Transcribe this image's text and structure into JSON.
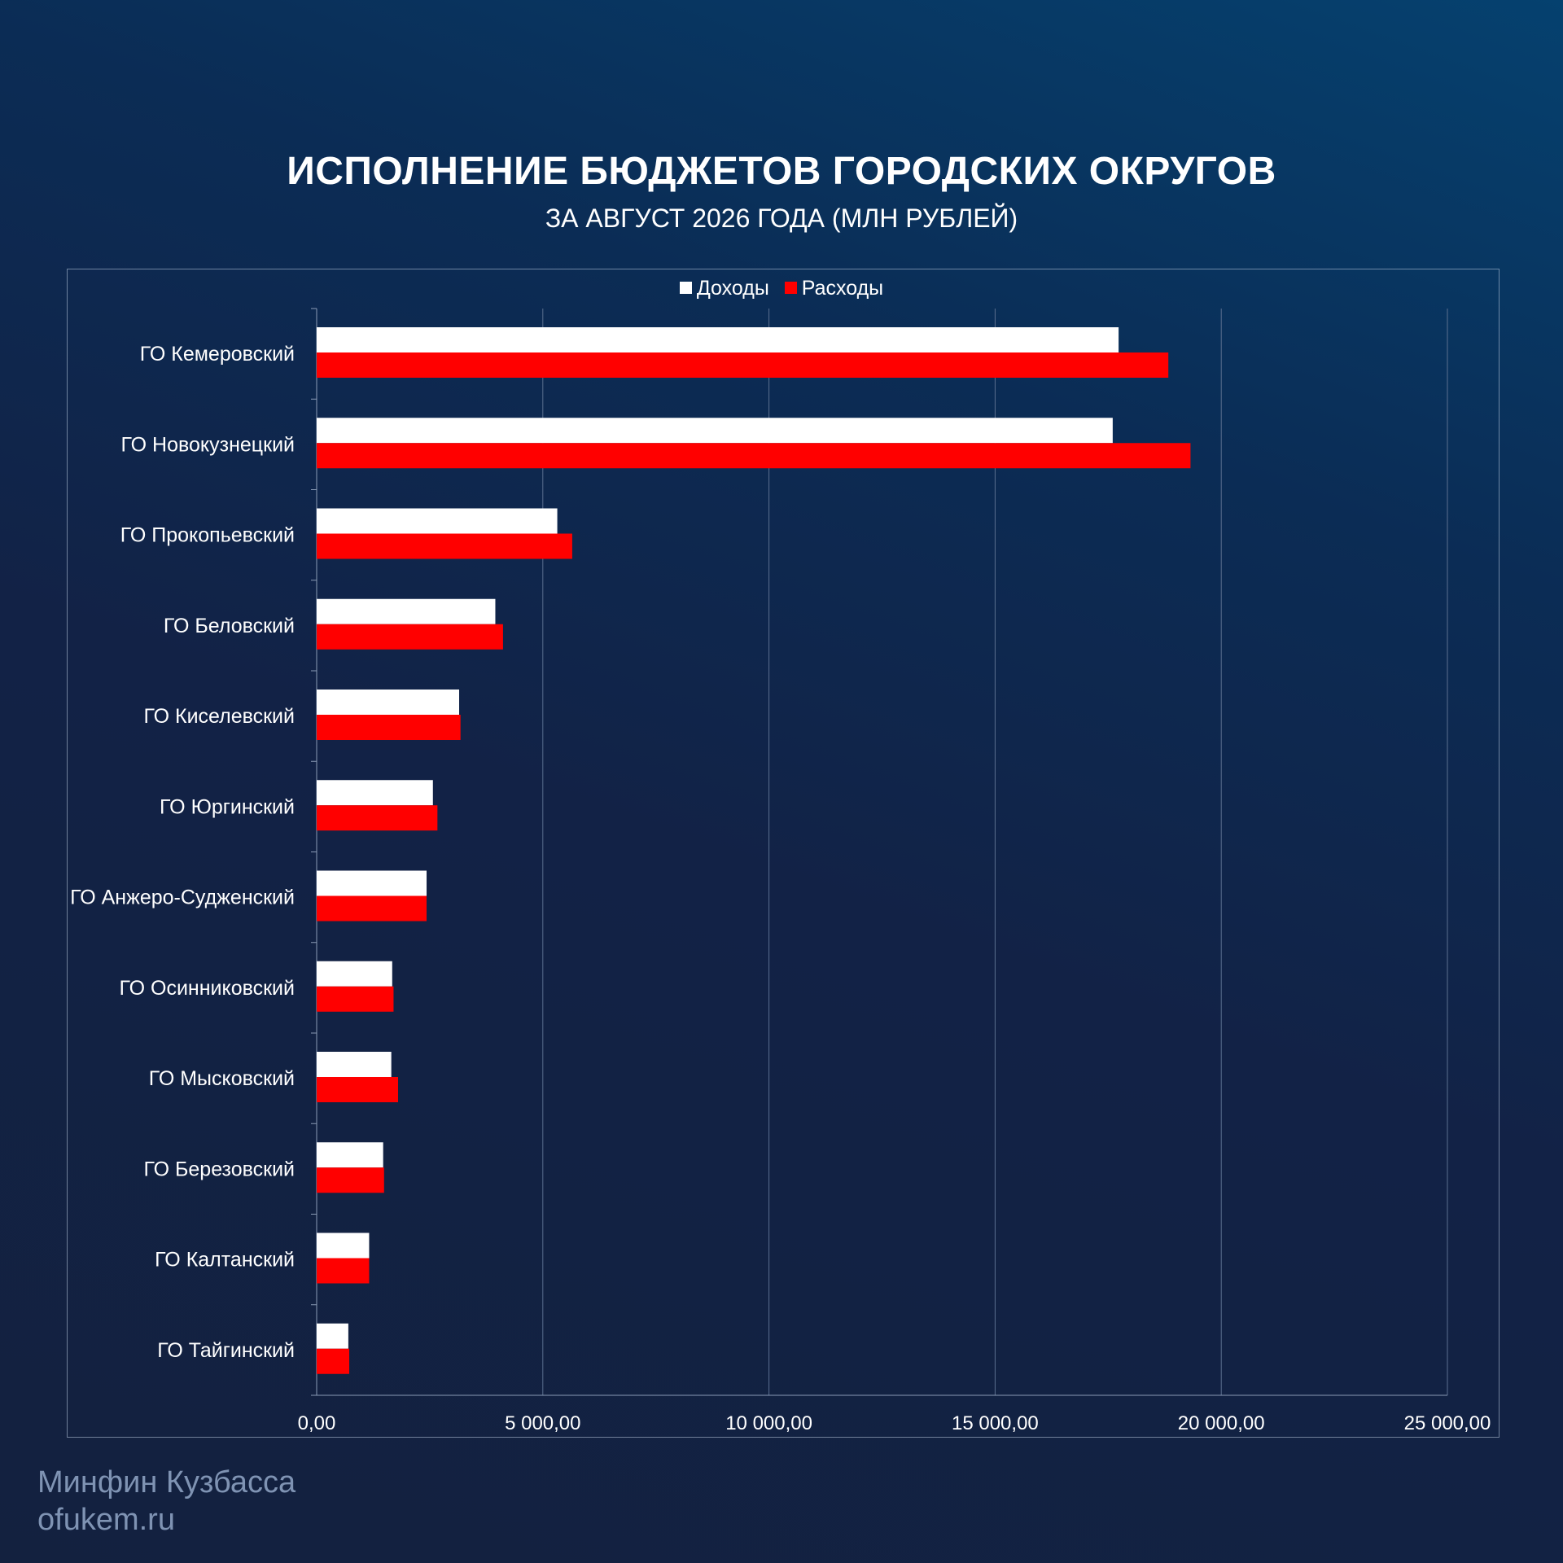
{
  "header": {
    "title": "ИСПОЛНЕНИЕ БЮДЖЕТОВ ГОРОДСКИХ ОКРУГОВ",
    "subtitle": "ЗА АВГУСТ 2026 ГОДА (МЛН РУБЛЕЙ)"
  },
  "footer": {
    "org": "Минфин Кузбасса",
    "site": "ofukem.ru"
  },
  "colors": {
    "income": "#ffffff",
    "expense": "#ff0000",
    "grid": "#5b6f8f"
  },
  "chart_data": {
    "type": "bar",
    "orientation": "horizontal",
    "title": "ИСПОЛНЕНИЕ БЮДЖЕТОВ ГОРОДСКИХ ОКРУГОВ",
    "subtitle": "ЗА АВГУСТ 2026 ГОДА (МЛН РУБЛЕЙ)",
    "categories": [
      "ГО Кемеровский",
      "ГО Новокузнецкий",
      "ГО Прокопьевский",
      "ГО Беловский",
      "ГО Киселевский",
      "ГО Юргинский",
      "ГО Анжеро-Судженский",
      "ГО Осинниковский",
      "ГО Мысковский",
      "ГО Березовский",
      "ГО Калтанский",
      "ГО Тайгинский"
    ],
    "series": [
      {
        "name": "Доходы",
        "color": "#ffffff",
        "values": [
          17730,
          17600,
          5320,
          3950,
          3150,
          2570,
          2430,
          1670,
          1650,
          1470,
          1160,
          700
        ]
      },
      {
        "name": "Расходы",
        "color": "#ff0000",
        "values": [
          18830,
          19320,
          5650,
          4120,
          3180,
          2670,
          2430,
          1700,
          1800,
          1490,
          1160,
          720
        ]
      }
    ],
    "xlim": [
      0,
      25000
    ],
    "xticks": [
      0,
      5000,
      10000,
      15000,
      20000,
      25000
    ],
    "xtick_labels": [
      "0,00",
      "5 000,00",
      "10 000,00",
      "15 000,00",
      "20 000,00",
      "25 000,00"
    ],
    "grid": "vertical",
    "legend": "top-center"
  }
}
